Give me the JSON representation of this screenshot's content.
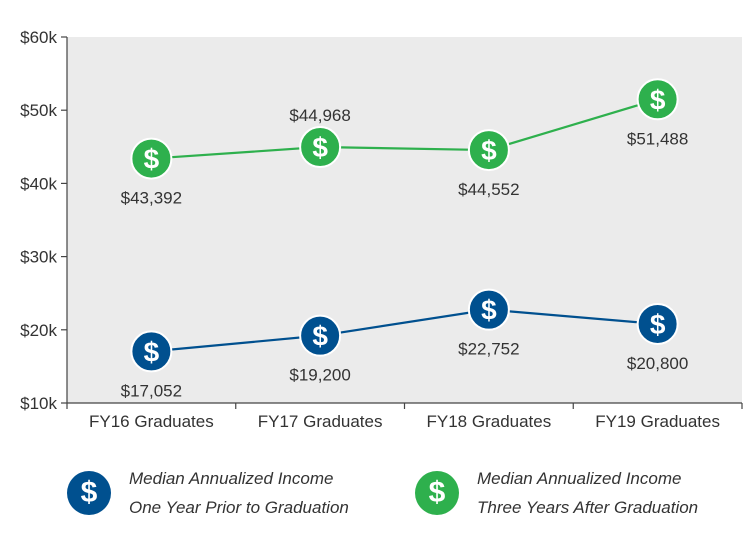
{
  "chart_data": {
    "type": "line",
    "categories": [
      "FY16 Graduates",
      "FY17 Graduates",
      "FY18 Graduates",
      "FY19 Graduates"
    ],
    "ylim": [
      10000,
      60000
    ],
    "yticks": [
      10000,
      20000,
      30000,
      40000,
      50000,
      60000
    ],
    "ytick_labels": [
      "$10k",
      "$20k",
      "$30k",
      "$40k",
      "$50k",
      "$60k"
    ],
    "grid": false,
    "legend_position": "bottom",
    "series": [
      {
        "name_lines": [
          "Median Annualized Income",
          "One Year Prior to Graduation"
        ],
        "color": "#00508f",
        "values": [
          17052,
          19200,
          22752,
          20800
        ],
        "value_labels": [
          "$17,052",
          "$19,200",
          "$22,752",
          "$20,800"
        ],
        "label_position": [
          "below",
          "below",
          "below",
          "below"
        ]
      },
      {
        "name_lines": [
          "Median Annualized Income",
          "Three Years After Graduation"
        ],
        "color": "#2eb04d",
        "values": [
          43392,
          44968,
          44552,
          51488
        ],
        "value_labels": [
          "$43,392",
          "$44,968",
          "$44,552",
          "$51,488"
        ],
        "label_position": [
          "below",
          "above",
          "below",
          "below"
        ]
      }
    ],
    "marker_glyph": "$",
    "plot_background": "#ebebeb"
  }
}
